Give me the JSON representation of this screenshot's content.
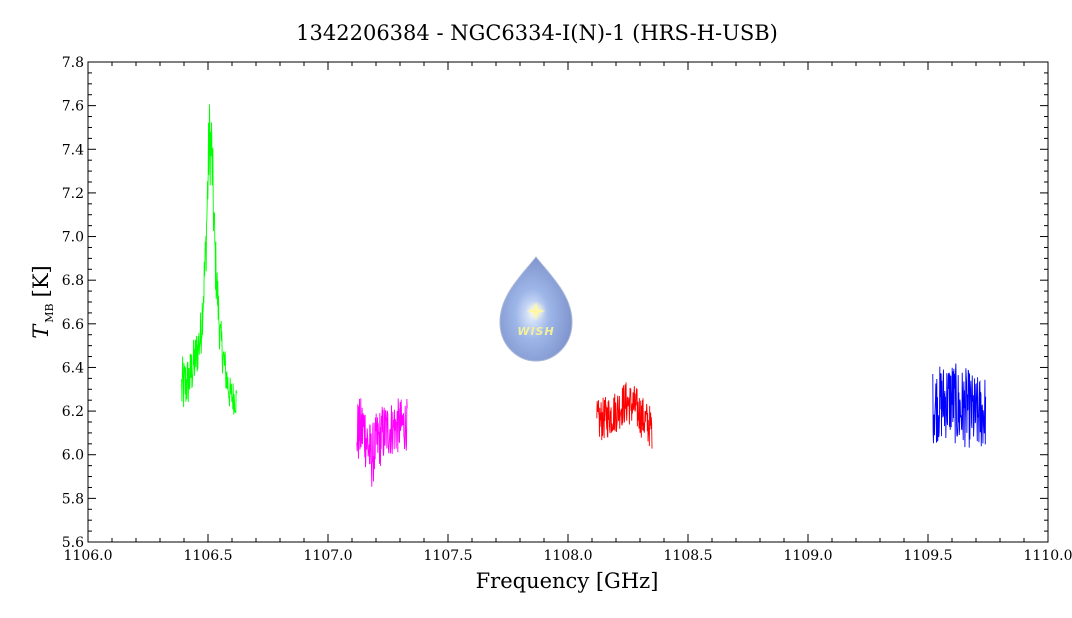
{
  "chart_data": {
    "type": "line",
    "title": "1342206384 - NGC6334-I(N)-1 (HRS-H-USB)",
    "xlabel": "Frequency [GHz]",
    "ylabel_main": "T",
    "ylabel_sub": "MB",
    "ylabel_unit": "[K]",
    "xlim": [
      1106.0,
      1110.0
    ],
    "ylim": [
      5.6,
      7.8
    ],
    "xticks": [
      1106.0,
      1106.5,
      1107.0,
      1107.5,
      1108.0,
      1108.5,
      1109.0,
      1109.5,
      1110.0
    ],
    "xtick_labels": [
      "1106.0",
      "1106.5",
      "1107.0",
      "1107.5",
      "1108.0",
      "1108.5",
      "1109.0",
      "1109.5",
      "1110.0"
    ],
    "yticks": [
      5.6,
      5.8,
      6.0,
      6.2,
      6.4,
      6.6,
      6.8,
      7.0,
      7.2,
      7.4,
      7.6,
      7.8
    ],
    "ytick_labels": [
      "5.6",
      "5.8",
      "6.0",
      "6.2",
      "6.4",
      "6.6",
      "6.8",
      "7.0",
      "7.2",
      "7.4",
      "7.6",
      "7.8"
    ],
    "grid": false,
    "series": [
      {
        "color": "#00ff00",
        "x": [
          1106.39,
          1106.42,
          1106.45,
          1106.47,
          1106.49,
          1106.505,
          1106.515,
          1106.53,
          1106.55,
          1106.57,
          1106.59,
          1106.62
        ],
        "y": [
          6.3,
          6.34,
          6.45,
          6.55,
          6.9,
          7.45,
          7.4,
          6.9,
          6.55,
          6.4,
          6.28,
          6.25
        ],
        "amp": [
          0.15,
          0.12,
          0.12,
          0.12,
          0.15,
          0.2,
          0.2,
          0.15,
          0.1,
          0.1,
          0.08,
          0.08
        ]
      },
      {
        "color": "#ff00ff",
        "x": [
          1107.12,
          1107.15,
          1107.18,
          1107.2,
          1107.23,
          1107.26,
          1107.29,
          1107.33
        ],
        "y": [
          6.1,
          6.12,
          5.98,
          6.05,
          6.1,
          6.12,
          6.13,
          6.14
        ],
        "amp": [
          0.15,
          0.16,
          0.15,
          0.14,
          0.14,
          0.13,
          0.13,
          0.12
        ]
      },
      {
        "color": "#ff0000",
        "x": [
          1108.12,
          1108.16,
          1108.2,
          1108.24,
          1108.28,
          1108.31,
          1108.35
        ],
        "y": [
          6.15,
          6.17,
          6.2,
          6.24,
          6.22,
          6.17,
          6.12
        ],
        "amp": [
          0.1,
          0.1,
          0.1,
          0.1,
          0.1,
          0.1,
          0.1
        ]
      },
      {
        "color": "#0000ff",
        "x": [
          1109.52,
          1109.56,
          1109.6,
          1109.63,
          1109.66,
          1109.7,
          1109.74
        ],
        "y": [
          6.22,
          6.24,
          6.26,
          6.2,
          6.22,
          6.18,
          6.2
        ],
        "amp": [
          0.17,
          0.18,
          0.18,
          0.2,
          0.18,
          0.18,
          0.17
        ]
      }
    ]
  },
  "logo": {
    "text": "WISH"
  }
}
